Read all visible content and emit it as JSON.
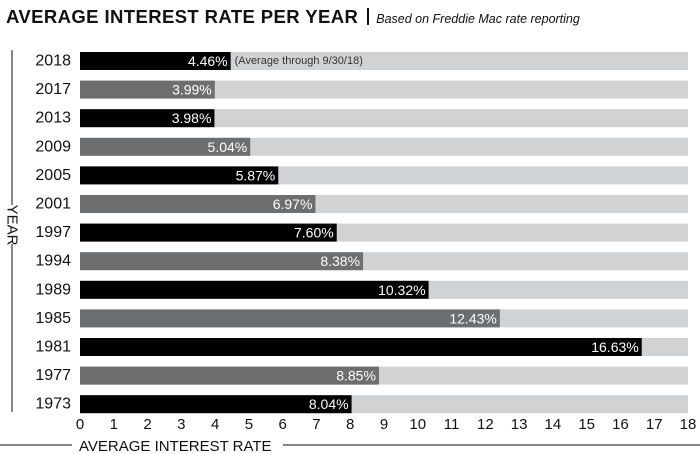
{
  "chart_data": {
    "type": "bar",
    "orientation": "horizontal",
    "title": "AVERAGE INTEREST RATE PER YEAR",
    "subtitle": "Based on Freddie Mac rate reporting",
    "xlabel": "AVERAGE INTEREST RATE",
    "ylabel": "YEAR",
    "categories": [
      "2018",
      "2017",
      "2013",
      "2009",
      "2005",
      "2001",
      "1997",
      "1994",
      "1989",
      "1985",
      "1981",
      "1977",
      "1973"
    ],
    "values": [
      4.46,
      3.99,
      3.98,
      5.04,
      5.87,
      6.97,
      7.6,
      8.38,
      10.32,
      12.43,
      16.63,
      8.85,
      8.04
    ],
    "value_labels": [
      "4.46%",
      "3.99%",
      "3.98%",
      "5.04%",
      "5.87%",
      "6.97%",
      "7.60%",
      "8.38%",
      "10.32%",
      "12.43%",
      "16.63%",
      "8.85%",
      "8.04%"
    ],
    "annotations": [
      {
        "category": "2018",
        "text": "(Average through 9/30/18)"
      }
    ],
    "xlim": [
      0,
      18
    ],
    "xticks": [
      "0",
      "1",
      "2",
      "3",
      "4",
      "5",
      "6",
      "7",
      "8",
      "9",
      "10",
      "11",
      "12",
      "13",
      "14",
      "15",
      "16",
      "17",
      "18"
    ],
    "grid": false,
    "colors": {
      "bar_dark": "#000000",
      "bar_mid": "#6d6e70",
      "track": "#d1d2d4",
      "text": "#111111"
    }
  }
}
